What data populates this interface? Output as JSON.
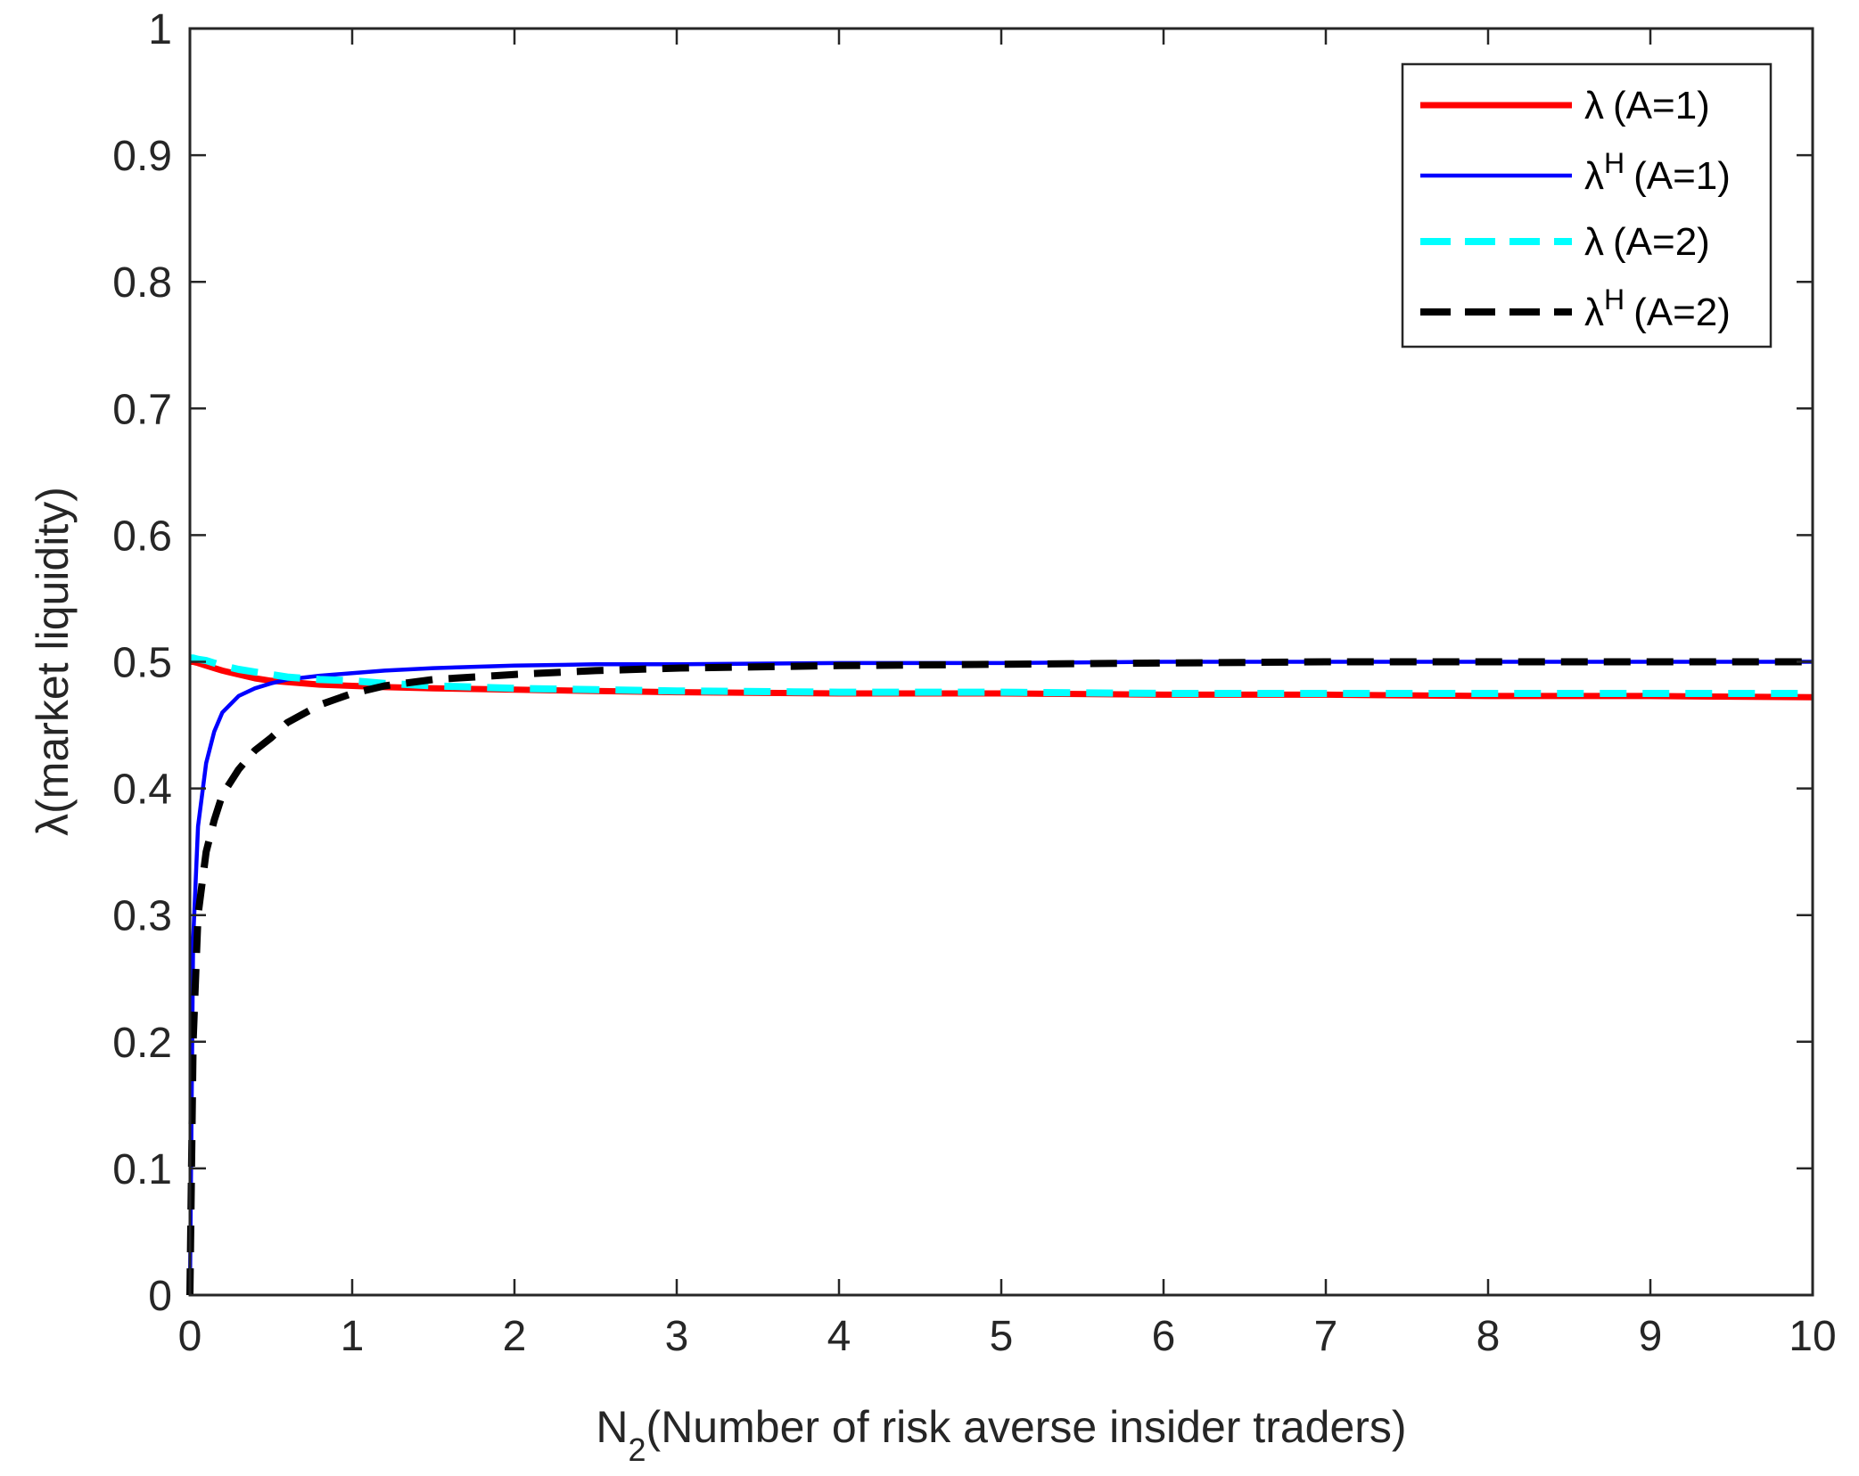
{
  "chart_data": {
    "type": "line",
    "xlabel": {
      "main": "N",
      "sub": "2",
      "rest": "(Number of risk averse insider traders)"
    },
    "ylabel": "λ(market liquidity)",
    "xlim": [
      0,
      10
    ],
    "ylim": [
      0,
      1
    ],
    "xticks": [
      "0",
      "1",
      "2",
      "3",
      "4",
      "5",
      "6",
      "7",
      "8",
      "9",
      "10"
    ],
    "yticks": [
      "0",
      "0.1",
      "0.2",
      "0.3",
      "0.4",
      "0.5",
      "0.6",
      "0.7",
      "0.8",
      "0.9",
      "1"
    ],
    "legend": {
      "placement": "top-right"
    },
    "x": [
      0,
      0.02,
      0.05,
      0.1,
      0.15,
      0.2,
      0.3,
      0.4,
      0.5,
      0.6,
      0.8,
      1,
      1.2,
      1.5,
      2,
      2.5,
      3,
      4,
      5,
      6,
      7,
      8,
      9,
      10
    ],
    "series": [
      {
        "name": "λ (A=1)",
        "legend_main": "λ",
        "legend_sup": "",
        "legend_suffix": "(A=1)",
        "color": "#ff0000",
        "dash": "solid",
        "values": [
          0.5,
          0.5,
          0.499,
          0.497,
          0.495,
          0.493,
          0.49,
          0.487,
          0.485,
          0.484,
          0.482,
          0.481,
          0.48,
          0.479,
          0.478,
          0.477,
          0.476,
          0.475,
          0.475,
          0.474,
          0.474,
          0.473,
          0.473,
          0.472
        ]
      },
      {
        "name": "λH (A=1)",
        "legend_main": "λ",
        "legend_sup": "H",
        "legend_suffix": "(A=1)",
        "color": "#0000ff",
        "dash": "solid",
        "values": [
          0.0,
          0.28,
          0.37,
          0.42,
          0.445,
          0.46,
          0.473,
          0.479,
          0.483,
          0.486,
          0.489,
          0.491,
          0.493,
          0.495,
          0.497,
          0.498,
          0.498,
          0.499,
          0.499,
          0.5,
          0.5,
          0.5,
          0.5,
          0.5
        ]
      },
      {
        "name": "λ (A=2)",
        "legend_main": "λ",
        "legend_sup": "",
        "legend_suffix": "(A=2)",
        "color": "#00ffff",
        "dash": "dashed",
        "values": [
          0.503,
          0.503,
          0.502,
          0.501,
          0.499,
          0.497,
          0.494,
          0.492,
          0.49,
          0.488,
          0.486,
          0.485,
          0.483,
          0.481,
          0.479,
          0.478,
          0.477,
          0.476,
          0.476,
          0.475,
          0.475,
          0.475,
          0.475,
          0.475
        ]
      },
      {
        "name": "λH (A=2)",
        "legend_main": "λ",
        "legend_sup": "H",
        "legend_suffix": "(A=2)",
        "color": "#000000",
        "dash": "dashed",
        "values": [
          0.0,
          0.2,
          0.3,
          0.35,
          0.375,
          0.395,
          0.415,
          0.43,
          0.44,
          0.452,
          0.466,
          0.475,
          0.481,
          0.486,
          0.49,
          0.493,
          0.495,
          0.497,
          0.498,
          0.499,
          0.5,
          0.5,
          0.5,
          0.5
        ]
      }
    ]
  }
}
